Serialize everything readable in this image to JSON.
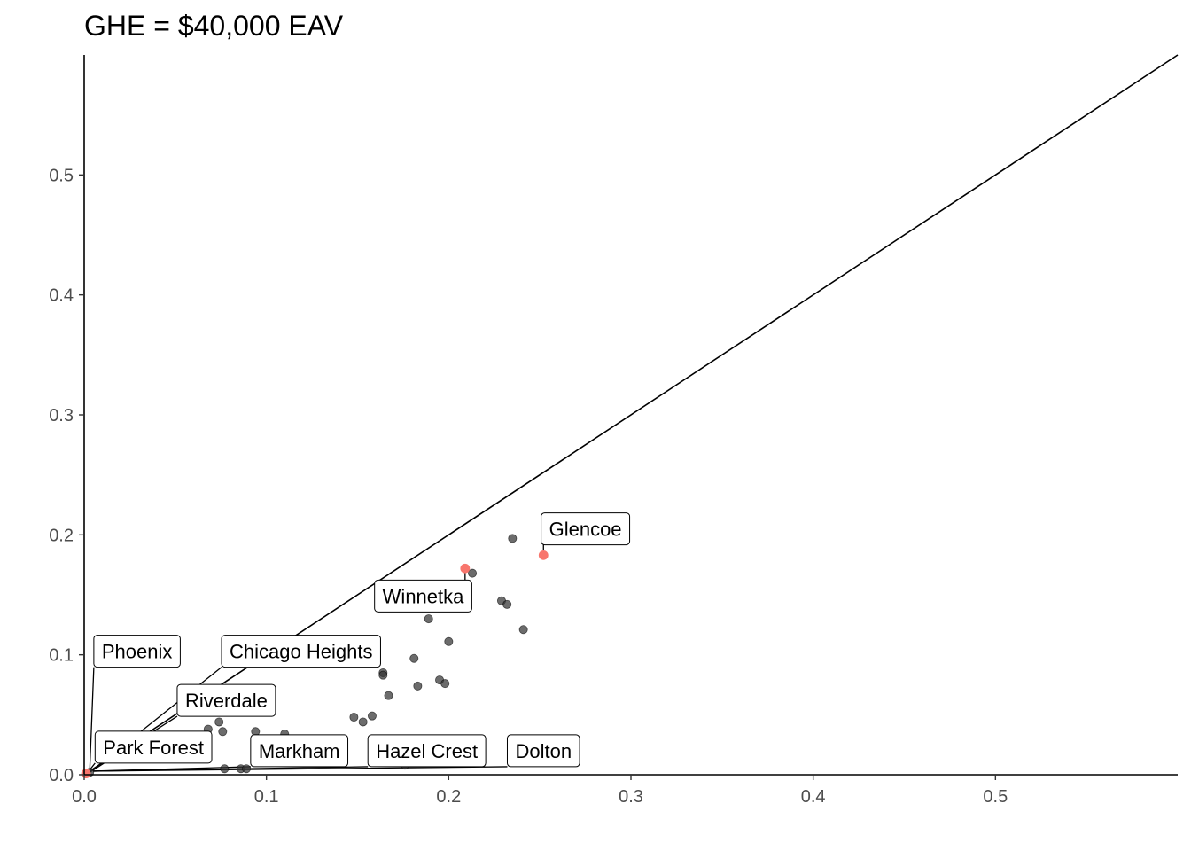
{
  "chart_data": {
    "type": "scatter",
    "title": "GHE = $40,000 EAV",
    "xlabel": "",
    "ylabel": "",
    "xlim": [
      0,
      0.6
    ],
    "ylim": [
      0,
      0.6
    ],
    "x_ticks": [
      "0.0",
      "0.1",
      "0.2",
      "0.3",
      "0.4",
      "0.5"
    ],
    "y_ticks": [
      "0.0",
      "0.1",
      "0.2",
      "0.3",
      "0.4",
      "0.5"
    ],
    "tick_values": [
      0,
      0.1,
      0.2,
      0.3,
      0.4,
      0.5
    ],
    "reference_line": {
      "type": "y = x",
      "from": [
        0,
        0
      ],
      "to": [
        0.6,
        0.6
      ]
    },
    "grid": false,
    "legend": "none",
    "colors": {
      "points": "#333333",
      "highlight": "#f8766d",
      "line": "#000000"
    },
    "points": [
      {
        "x": 0.235,
        "y": 0.197
      },
      {
        "x": 0.213,
        "y": 0.168
      },
      {
        "x": 0.229,
        "y": 0.145
      },
      {
        "x": 0.232,
        "y": 0.142
      },
      {
        "x": 0.189,
        "y": 0.13
      },
      {
        "x": 0.241,
        "y": 0.121
      },
      {
        "x": 0.2,
        "y": 0.111
      },
      {
        "x": 0.181,
        "y": 0.097
      },
      {
        "x": 0.164,
        "y": 0.085
      },
      {
        "x": 0.164,
        "y": 0.083
      },
      {
        "x": 0.195,
        "y": 0.079
      },
      {
        "x": 0.198,
        "y": 0.076
      },
      {
        "x": 0.183,
        "y": 0.074
      },
      {
        "x": 0.167,
        "y": 0.066
      },
      {
        "x": 0.148,
        "y": 0.048
      },
      {
        "x": 0.158,
        "y": 0.049
      },
      {
        "x": 0.153,
        "y": 0.044
      },
      {
        "x": 0.074,
        "y": 0.044
      },
      {
        "x": 0.068,
        "y": 0.038
      },
      {
        "x": 0.076,
        "y": 0.036
      },
      {
        "x": 0.094,
        "y": 0.036
      },
      {
        "x": 0.11,
        "y": 0.034
      },
      {
        "x": 0.077,
        "y": 0.005
      },
      {
        "x": 0.086,
        "y": 0.005
      },
      {
        "x": 0.089,
        "y": 0.005
      },
      {
        "x": 0.176,
        "y": 0.008
      },
      {
        "x": 0.162,
        "y": 0.015
      },
      {
        "x": 0.2,
        "y": 0.014
      },
      {
        "x": 0.003,
        "y": 0.002
      },
      {
        "x": 0.001,
        "y": 0.001
      }
    ],
    "highlighted_points": [
      {
        "x": 0.252,
        "y": 0.183
      },
      {
        "x": 0.209,
        "y": 0.172
      },
      {
        "x": 0.001,
        "y": 0.001
      }
    ],
    "labels": [
      {
        "text": "Glencoe",
        "x": 0.252,
        "y": 0.183,
        "lx": 0.275,
        "ly": 0.205
      },
      {
        "text": "Winnetka",
        "x": 0.209,
        "y": 0.172,
        "lx": 0.186,
        "ly": 0.149
      },
      {
        "text": "Phoenix",
        "x": 0.003,
        "y": 0.002,
        "lx": 0.029,
        "ly": 0.103
      },
      {
        "text": "Chicago Heights",
        "x": 0.003,
        "y": 0.002,
        "lx": 0.119,
        "ly": 0.103
      },
      {
        "text": "Riverdale",
        "x": 0.003,
        "y": 0.002,
        "lx": 0.078,
        "ly": 0.062
      },
      {
        "text": "Park Forest",
        "x": 0.002,
        "y": 0.002,
        "lx": 0.038,
        "ly": 0.023
      },
      {
        "text": "Markham",
        "x": 0.005,
        "y": 0.003,
        "lx": 0.118,
        "ly": 0.02
      },
      {
        "text": "Hazel Crest",
        "x": 0.005,
        "y": 0.003,
        "lx": 0.188,
        "ly": 0.02
      },
      {
        "text": "Dolton",
        "x": 0.005,
        "y": 0.003,
        "lx": 0.252,
        "ly": 0.02
      }
    ]
  }
}
